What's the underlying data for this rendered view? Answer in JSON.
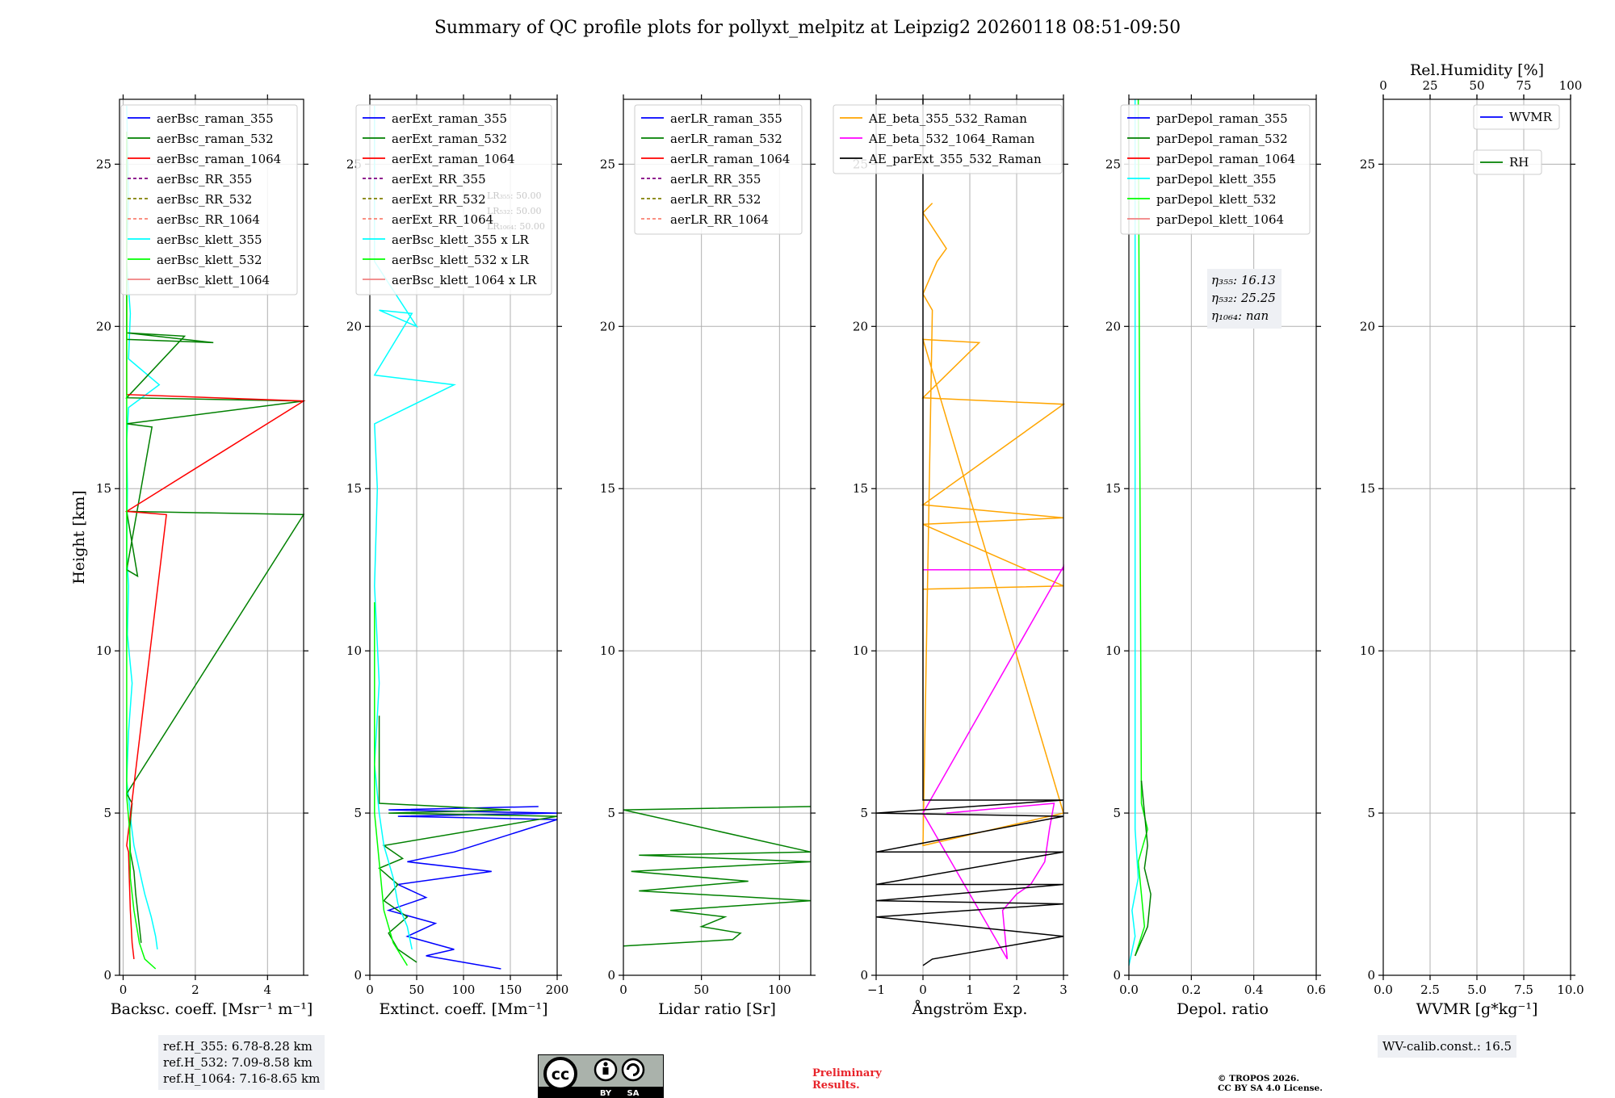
{
  "title": "Summary of QC profile plots for pollyxt_melpitz at Leipzig2 20260118 08:51-09:50",
  "chart_data": [
    {
      "type": "line",
      "panel": "backscatter",
      "xlabel": "Backsc. coeff. [Msr⁻¹ m⁻¹]",
      "ylabel": "Height [km]",
      "xlim": [
        -0.1,
        5
      ],
      "ylim": [
        0,
        27
      ],
      "xticks": [
        0,
        2,
        4
      ],
      "yticks": [
        0,
        5,
        10,
        15,
        20,
        25
      ],
      "legend": [
        "aerBsc_raman_355",
        "aerBsc_raman_532",
        "aerBsc_raman_1064",
        "aerBsc_RR_355",
        "aerBsc_RR_532",
        "aerBsc_RR_1064",
        "aerBsc_klett_355",
        "aerBsc_klett_532",
        "aerBsc_klett_1064"
      ],
      "legend_position": "top-right",
      "series": [
        {
          "name": "aerBsc_klett_355",
          "color": "#00ffff",
          "x": [
            0.95,
            0.9,
            0.78,
            0.6,
            0.5,
            0.4,
            0.3,
            0.22,
            0.18,
            0.1,
            0.15,
            0.25,
            0.12,
            0.15,
            0.1,
            0.12,
            0.1,
            0.15,
            1.0,
            0.15,
            0.2,
            0.1,
            0.15,
            0.1
          ],
          "y": [
            0.8,
            1.2,
            1.8,
            2.5,
            3.0,
            3.5,
            4.0,
            4.7,
            5.2,
            6.0,
            7.5,
            9.0,
            10.5,
            12.0,
            13.0,
            15.0,
            16.5,
            17.5,
            18.2,
            19.0,
            20.4,
            22.0,
            24.0,
            26.8
          ]
        },
        {
          "name": "aerBsc_raman_532",
          "color": "#008000",
          "x": [
            0.5,
            0.45,
            0.35,
            0.3,
            0.2,
            0.18,
            0.25,
            0.1,
            5.0,
            0.1,
            0.4,
            0.1,
            0.8,
            0.1,
            5.0,
            0.1,
            1.7,
            0.1,
            2.5,
            0.1,
            0.1
          ],
          "y": [
            1.0,
            1.5,
            2.5,
            3.2,
            3.8,
            4.5,
            5.3,
            5.6,
            14.2,
            14.3,
            12.3,
            12.5,
            16.9,
            17.0,
            17.7,
            17.8,
            19.7,
            19.8,
            19.5,
            19.6,
            25.0
          ]
        },
        {
          "name": "aerBsc_raman_1064",
          "color": "#ff0000",
          "x": [
            0.3,
            0.25,
            0.2,
            0.17,
            0.15,
            0.1,
            1.2,
            0.1,
            5.0,
            0.1,
            0.1
          ],
          "y": [
            0.5,
            1.0,
            2.0,
            3.0,
            3.8,
            4.0,
            14.2,
            14.3,
            17.7,
            17.9,
            26.0
          ]
        },
        {
          "name": "aerBsc_klett_532",
          "color": "#00ff00",
          "x": [
            0.9,
            0.6,
            0.45,
            0.3,
            0.2,
            0.18,
            0.1,
            0.1
          ],
          "y": [
            0.2,
            0.5,
            1.0,
            2.0,
            3.0,
            4.5,
            5.5,
            26.0
          ]
        }
      ]
    },
    {
      "type": "line",
      "panel": "extinction",
      "xlabel": "Extinct. coeff. [Mm⁻¹]",
      "ylabel": "",
      "xlim": [
        0,
        200
      ],
      "ylim": [
        0,
        27
      ],
      "xticks": [
        0,
        50,
        100,
        150,
        200
      ],
      "yticks": [
        0,
        5,
        10,
        15,
        20,
        25
      ],
      "legend": [
        "aerExt_raman_355",
        "aerExt_raman_532",
        "aerExt_raman_1064",
        "aerExt_RR_355",
        "aerExt_RR_532",
        "aerExt_RR_1064",
        "aerBsc_klett_355 x LR",
        "aerBsc_klett_532 x LR",
        "aerBsc_klett_1064 x LR"
      ],
      "legend_position": "top-right",
      "annotations": [
        "LR₃₅₅: 50.00",
        "LR₅₃₂: 50.00",
        "LR₁₀₆₄: 50.00"
      ],
      "series": [
        {
          "name": "aerExt_raman_355",
          "color": "#0000ff",
          "x": [
            140,
            60,
            90,
            40,
            70,
            20,
            60,
            30,
            130,
            40,
            90,
            200,
            30,
            200,
            20,
            180
          ],
          "y": [
            0.2,
            0.6,
            0.8,
            1.2,
            1.6,
            2.0,
            2.4,
            2.8,
            3.2,
            3.5,
            3.8,
            4.8,
            4.9,
            5.0,
            5.1,
            5.2
          ]
        },
        {
          "name": "aerExt_raman_532",
          "color": "#008000",
          "x": [
            50,
            30,
            20,
            40,
            15,
            30,
            10,
            35,
            15,
            200,
            20,
            150,
            10,
            10
          ],
          "y": [
            0.4,
            0.8,
            1.3,
            1.8,
            2.3,
            2.8,
            3.3,
            3.6,
            4.0,
            4.9,
            5.0,
            5.1,
            5.3,
            8.0
          ]
        },
        {
          "name": "aerBsc_klett_355 x LR",
          "color": "#00ffff",
          "x": [
            45,
            40,
            30,
            25,
            15,
            10,
            5,
            10,
            5,
            8,
            5,
            90,
            5,
            45,
            10,
            50,
            5,
            5
          ],
          "y": [
            0.8,
            1.5,
            2.2,
            3.0,
            4.0,
            5.0,
            6.5,
            9.0,
            12.0,
            15.0,
            17.0,
            18.2,
            18.5,
            20.4,
            20.5,
            20.0,
            22.0,
            26.8
          ]
        },
        {
          "name": "aerBsc_klett_532 x LR",
          "color": "#00ff00",
          "x": [
            40,
            25,
            15,
            10,
            5,
            5
          ],
          "y": [
            0.3,
            1.0,
            2.0,
            3.5,
            5.0,
            11.5
          ]
        }
      ]
    },
    {
      "type": "line",
      "panel": "lidar_ratio",
      "xlabel": "Lidar ratio [Sr]",
      "ylabel": "",
      "xlim": [
        0,
        120
      ],
      "ylim": [
        0,
        27
      ],
      "xticks": [
        0,
        50,
        100
      ],
      "yticks": [
        0,
        5,
        10,
        15,
        20,
        25
      ],
      "legend": [
        "aerLR_raman_355",
        "aerLR_raman_532",
        "aerLR_raman_1064",
        "aerLR_RR_355",
        "aerLR_RR_532",
        "aerLR_RR_1064"
      ],
      "legend_position": "top",
      "series": [
        {
          "name": "aerLR_raman_532",
          "color": "#008000",
          "x": [
            0,
            70,
            75,
            50,
            65,
            30,
            120,
            10,
            80,
            5,
            120,
            10,
            120,
            0,
            120
          ],
          "y": [
            0.9,
            1.1,
            1.3,
            1.5,
            1.8,
            2.0,
            2.3,
            2.6,
            2.9,
            3.2,
            3.5,
            3.7,
            3.8,
            5.1,
            5.2
          ]
        }
      ]
    },
    {
      "type": "line",
      "panel": "angstrom",
      "xlabel": "Ångström Exp.",
      "ylabel": "",
      "xlim": [
        -1,
        3
      ],
      "ylim": [
        0,
        27
      ],
      "xticks": [
        -1,
        0,
        1,
        2,
        3
      ],
      "yticks": [
        0,
        5,
        10,
        15,
        20,
        25
      ],
      "legend": [
        "AE_beta_355_532_Raman",
        "AE_beta_532_1064_Raman",
        "AE_parExt_355_532_Raman"
      ],
      "legend_position": "top",
      "series": [
        {
          "name": "AE_beta_355_532_Raman",
          "color": "#ffa500",
          "x": [
            0,
            3,
            0,
            3,
            0,
            3,
            0,
            1.2,
            0,
            3,
            0,
            0.2,
            0,
            0.3,
            0.5,
            0,
            0.2
          ],
          "y": [
            11.9,
            12.0,
            13.9,
            14.1,
            14.5,
            17.6,
            17.8,
            19.5,
            19.6,
            5.0,
            4.0,
            20.5,
            21.0,
            22.0,
            22.4,
            23.5,
            23.8
          ]
        },
        {
          "name": "AE_beta_532_1064_Raman",
          "color": "#ff00ff",
          "x": [
            0,
            3,
            3,
            0,
            1.8,
            1.7,
            2.0,
            2.3,
            2.6,
            2.7,
            2.8,
            0.5
          ],
          "y": [
            12.5,
            12.5,
            12.6,
            5.0,
            0.5,
            2.0,
            2.5,
            2.8,
            3.5,
            4.5,
            5.3,
            5.0
          ]
        },
        {
          "name": "AE_parExt_355_532_Raman",
          "color": "#000000",
          "x": [
            0,
            0,
            3,
            -1,
            3,
            -1,
            3,
            -1,
            3,
            -1,
            3,
            -1,
            3,
            0.2,
            0
          ],
          "y": [
            27,
            5.4,
            5.4,
            5.0,
            4.9,
            3.8,
            3.8,
            2.8,
            2.8,
            2.3,
            2.2,
            1.8,
            1.2,
            0.5,
            0.3
          ]
        }
      ]
    },
    {
      "type": "line",
      "panel": "depolarization",
      "xlabel": "Depol. ratio",
      "ylabel": "",
      "xlim": [
        0,
        0.6
      ],
      "ylim": [
        0,
        27
      ],
      "xticks": [
        0.0,
        0.2,
        0.4,
        0.6
      ],
      "yticks": [
        0,
        5,
        10,
        15,
        20,
        25
      ],
      "legend": [
        "parDepol_raman_355",
        "parDepol_raman_532",
        "parDepol_raman_1064",
        "parDepol_klett_355",
        "parDepol_klett_532",
        "parDepol_klett_1064"
      ],
      "legend_position": "top-right",
      "annotations": [
        "η₃₅₅: 16.13",
        "η₅₃₂: 25.25",
        "η₁₀₆₄: nan"
      ],
      "series": [
        {
          "name": "parDepol_klett_532",
          "color": "#00ff00",
          "x": [
            0.02,
            0.05,
            0.04,
            0.03,
            0.06,
            0.04,
            0.03
          ],
          "y": [
            0.6,
            1.5,
            2.5,
            3.5,
            4.5,
            5.3,
            27
          ]
        },
        {
          "name": "parDepol_raman_532",
          "color": "#008000",
          "x": [
            0.02,
            0.06,
            0.07,
            0.05,
            0.06,
            0.04
          ],
          "y": [
            0.6,
            1.5,
            2.5,
            3.3,
            4.0,
            6.0
          ]
        },
        {
          "name": "parDepol_klett_355",
          "color": "#00ffff",
          "x": [
            0.0,
            0.02,
            0.01,
            0.03,
            0.02,
            0.02
          ],
          "y": [
            0.3,
            1.2,
            2.0,
            3.0,
            4.5,
            27
          ]
        }
      ]
    },
    {
      "type": "line",
      "panel": "water_vapor",
      "xlabel": "WVMR [g*kg⁻¹]",
      "ylabel": "",
      "xlim": [
        0,
        10
      ],
      "ylim": [
        0,
        27
      ],
      "xticks": [
        0.0,
        2.5,
        5.0,
        7.5,
        10.0
      ],
      "yticks": [
        0,
        5,
        10,
        15,
        20,
        25
      ],
      "top_xlabel": "Rel.Humidity [%]",
      "top_xlim": [
        0,
        100
      ],
      "top_xticks": [
        0,
        25,
        50,
        75,
        100
      ],
      "legend": [
        "WVMR",
        "RH"
      ],
      "series": []
    }
  ],
  "info": {
    "refh": [
      "ref.H_355: 6.78-8.28 km",
      "ref.H_532: 7.09-8.58 km",
      "ref.H_1064: 7.16-8.65 km"
    ],
    "wv_calib": "WV-calib.const.: 16.5",
    "preliminary": [
      "Preliminary",
      "Results."
    ],
    "copyright": [
      "© TROPOS 2026.",
      "CC BY SA 4.0 License."
    ],
    "license_badge": [
      "cc",
      "BY",
      "SA"
    ]
  },
  "colors": {
    "blue": "#0000ff",
    "green": "#008000",
    "red": "#ff0000",
    "purple": "#800080",
    "olive": "#808000",
    "salmon": "#fa8072",
    "cyan": "#00ffff",
    "lime": "#00ff00",
    "lightcoral": "#f08080",
    "orange": "#ffa500",
    "magenta": "#ff00ff",
    "black": "#000000",
    "grid": "#b0b0b0",
    "prelim": "#e8232a"
  }
}
